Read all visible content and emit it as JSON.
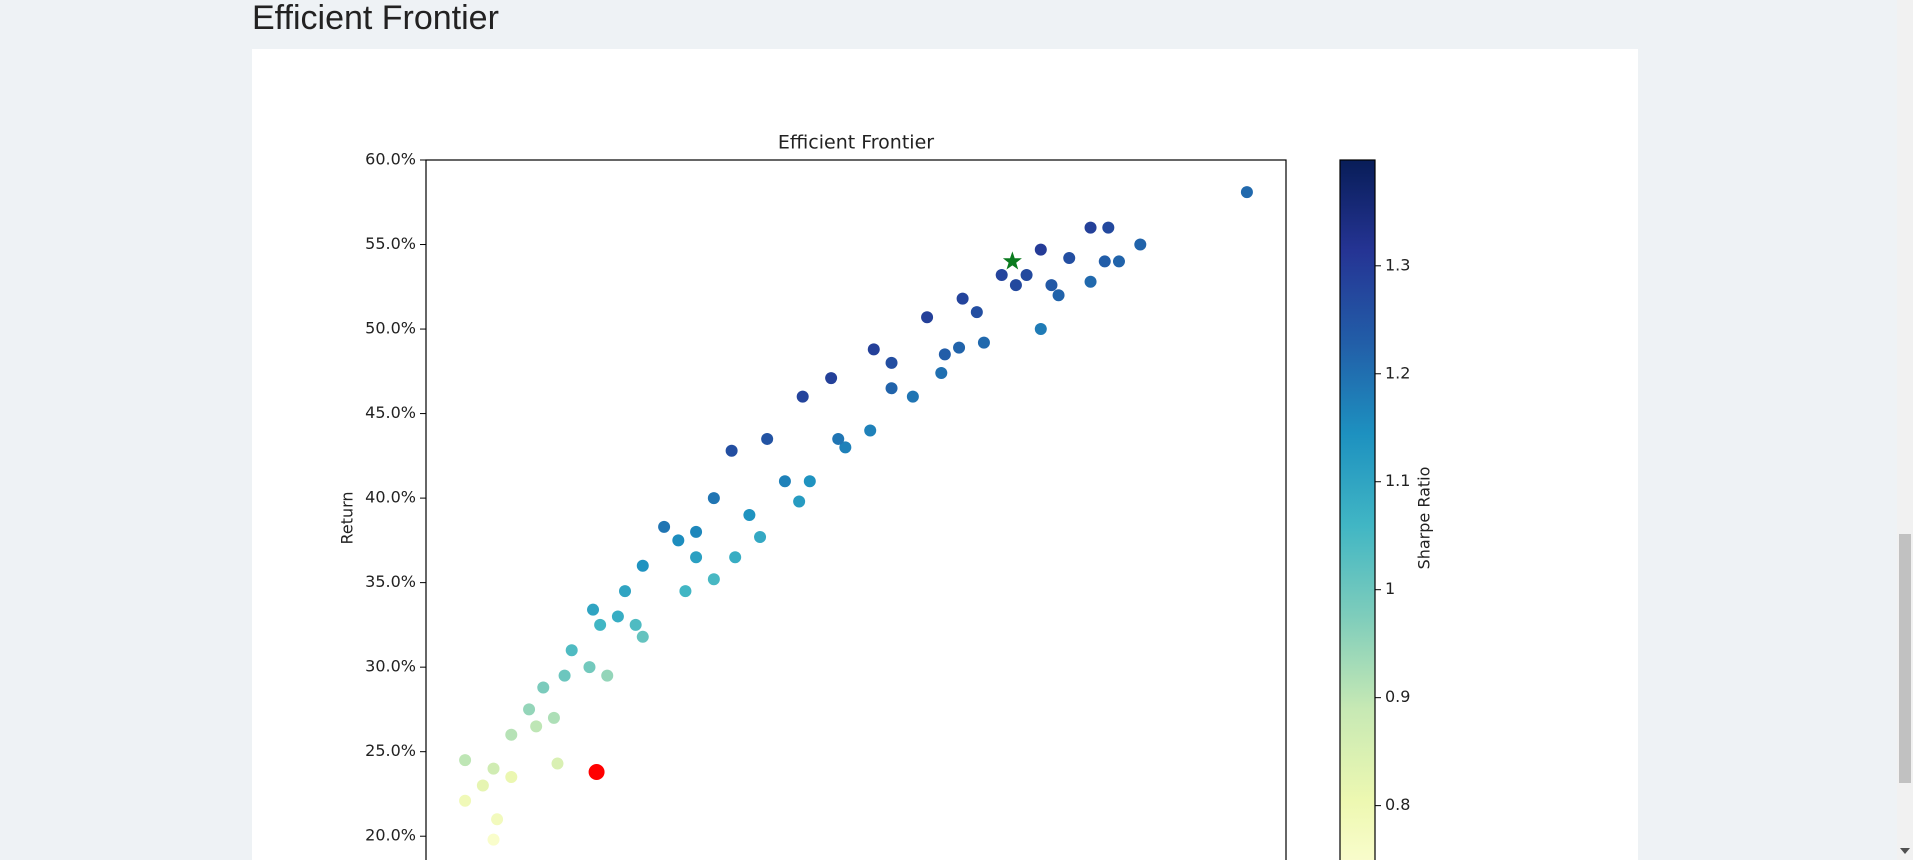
{
  "header": {
    "title": "Efficient Frontier"
  },
  "chart_data": {
    "type": "scatter",
    "title": "Efficient Frontier",
    "y_label": "Return",
    "colorbar_label": "Sharpe Ratio",
    "colormap": "YlGnBu",
    "xlim": [
      22.9,
      47.1
    ],
    "ylim": [
      16.7,
      60
    ],
    "yticks": [
      {
        "value": 20,
        "label": "20.0%"
      },
      {
        "value": 25,
        "label": "25.0%"
      },
      {
        "value": 30,
        "label": "30.0%"
      },
      {
        "value": 35,
        "label": "35.0%"
      },
      {
        "value": 40,
        "label": "40.0%"
      },
      {
        "value": 45,
        "label": "45.0%"
      },
      {
        "value": 50,
        "label": "50.0%"
      },
      {
        "value": 55,
        "label": "55.0%"
      },
      {
        "value": 60,
        "label": "60.0%"
      }
    ],
    "clim": [
      0.72,
      1.398
    ],
    "cticks": [
      0.8,
      0.9,
      1.0,
      1.1,
      1.2,
      1.3
    ],
    "points": {
      "x": [
        24.0,
        24.0,
        24.8,
        24.9,
        25.3,
        24.5,
        26.6,
        25.3,
        25.8,
        26.2,
        26.8,
        27.0,
        27.8,
        28.5,
        27.6,
        29.0,
        30.0,
        29.6,
        31.0,
        31.5,
        32.5,
        33.5,
        34.3,
        35.5,
        37.0,
        38.0,
        39.1,
        28.0,
        29.0,
        30.2,
        31.6,
        32.3,
        33.4,
        33.7,
        34.7,
        35.4,
        36.6,
        37.4,
        38.6,
        40.2,
        40.7,
        40.5,
        41.6,
        39.8,
        40.2,
        41.0,
        41.6,
        42.1,
        42.0,
        42.4,
        43.0,
        46.0,
        39.5,
        38.4,
        37.9,
        31.0,
        26.0,
        27.5,
        28.8,
        30.5,
        32.0,
        33.0,
        34.5,
        36.0,
        37.5,
        36.0,
        30.5,
        28.3,
        26.5,
        24.8
      ],
      "y": [
        24.5,
        22.1,
        19.8,
        21.0,
        23.5,
        23.0,
        24.3,
        26.0,
        27.5,
        28.8,
        29.5,
        31.0,
        32.5,
        34.5,
        33.4,
        36.0,
        37.5,
        38.3,
        40.0,
        42.8,
        43.5,
        46.0,
        47.1,
        48.8,
        50.7,
        51.8,
        53.2,
        29.5,
        31.8,
        34.5,
        36.5,
        37.7,
        39.8,
        41.0,
        43.0,
        44.0,
        46.0,
        47.4,
        49.2,
        50.0,
        52.0,
        52.6,
        52.8,
        53.2,
        54.7,
        54.2,
        56.0,
        56.0,
        54.0,
        54.0,
        55.0,
        58.1,
        52.6,
        51.0,
        48.9,
        35.2,
        26.5,
        30.0,
        32.5,
        36.5,
        39.0,
        41.0,
        43.5,
        46.5,
        48.5,
        48.0,
        38.0,
        33.0,
        27.0,
        24.0
      ],
      "c": [
        0.9,
        0.79,
        0.75,
        0.78,
        0.81,
        0.82,
        0.85,
        0.91,
        0.95,
        0.98,
        1.0,
        1.04,
        1.06,
        1.1,
        1.1,
        1.14,
        1.15,
        1.19,
        1.19,
        1.26,
        1.25,
        1.28,
        1.29,
        1.29,
        1.29,
        1.28,
        1.28,
        0.95,
        1.01,
        1.06,
        1.08,
        1.09,
        1.12,
        1.14,
        1.17,
        1.17,
        1.19,
        1.2,
        1.21,
        1.18,
        1.22,
        1.24,
        1.21,
        1.27,
        1.3,
        1.26,
        1.29,
        1.27,
        1.23,
        1.22,
        1.22,
        1.21,
        1.27,
        1.26,
        1.22,
        1.05,
        0.9,
        0.99,
        1.04,
        1.11,
        1.14,
        1.17,
        1.19,
        1.22,
        1.23,
        1.26,
        1.16,
        1.08,
        0.92,
        0.87
      ]
    },
    "highlights": [
      {
        "x": 27.7,
        "y": 23.8,
        "color": "#ff0000",
        "marker": "circle"
      },
      {
        "x": 39.4,
        "y": 54.0,
        "color": "#0a7a1e",
        "marker": "star"
      }
    ]
  }
}
